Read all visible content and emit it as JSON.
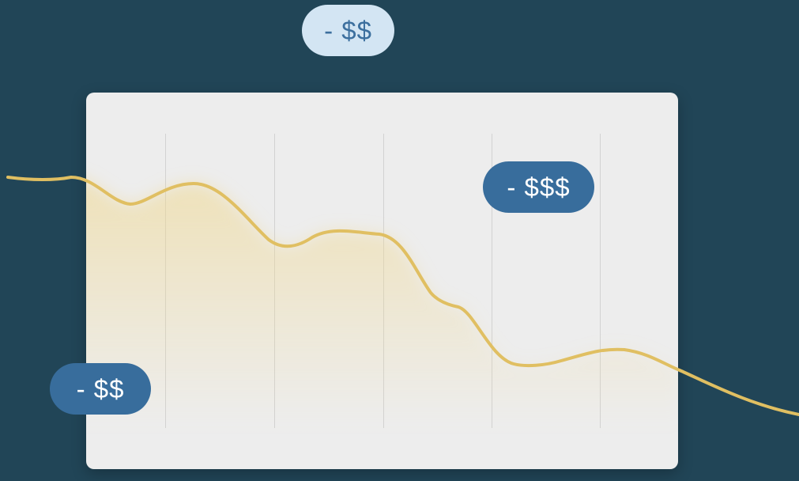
{
  "colors": {
    "background": "#214557",
    "card": "#ededed",
    "gridline": "#d2d2d2",
    "trend_line": "#e0bf62",
    "pill_light": "#d3e5f3",
    "pill_light_text": "#3c6f9e",
    "pill_dark": "#386d9c",
    "pill_dark_text": "#ffffff"
  },
  "icons": [
    "downward-trend-line"
  ],
  "tags": {
    "top": "- $$",
    "right": "- $$$",
    "left": "- $$"
  }
}
